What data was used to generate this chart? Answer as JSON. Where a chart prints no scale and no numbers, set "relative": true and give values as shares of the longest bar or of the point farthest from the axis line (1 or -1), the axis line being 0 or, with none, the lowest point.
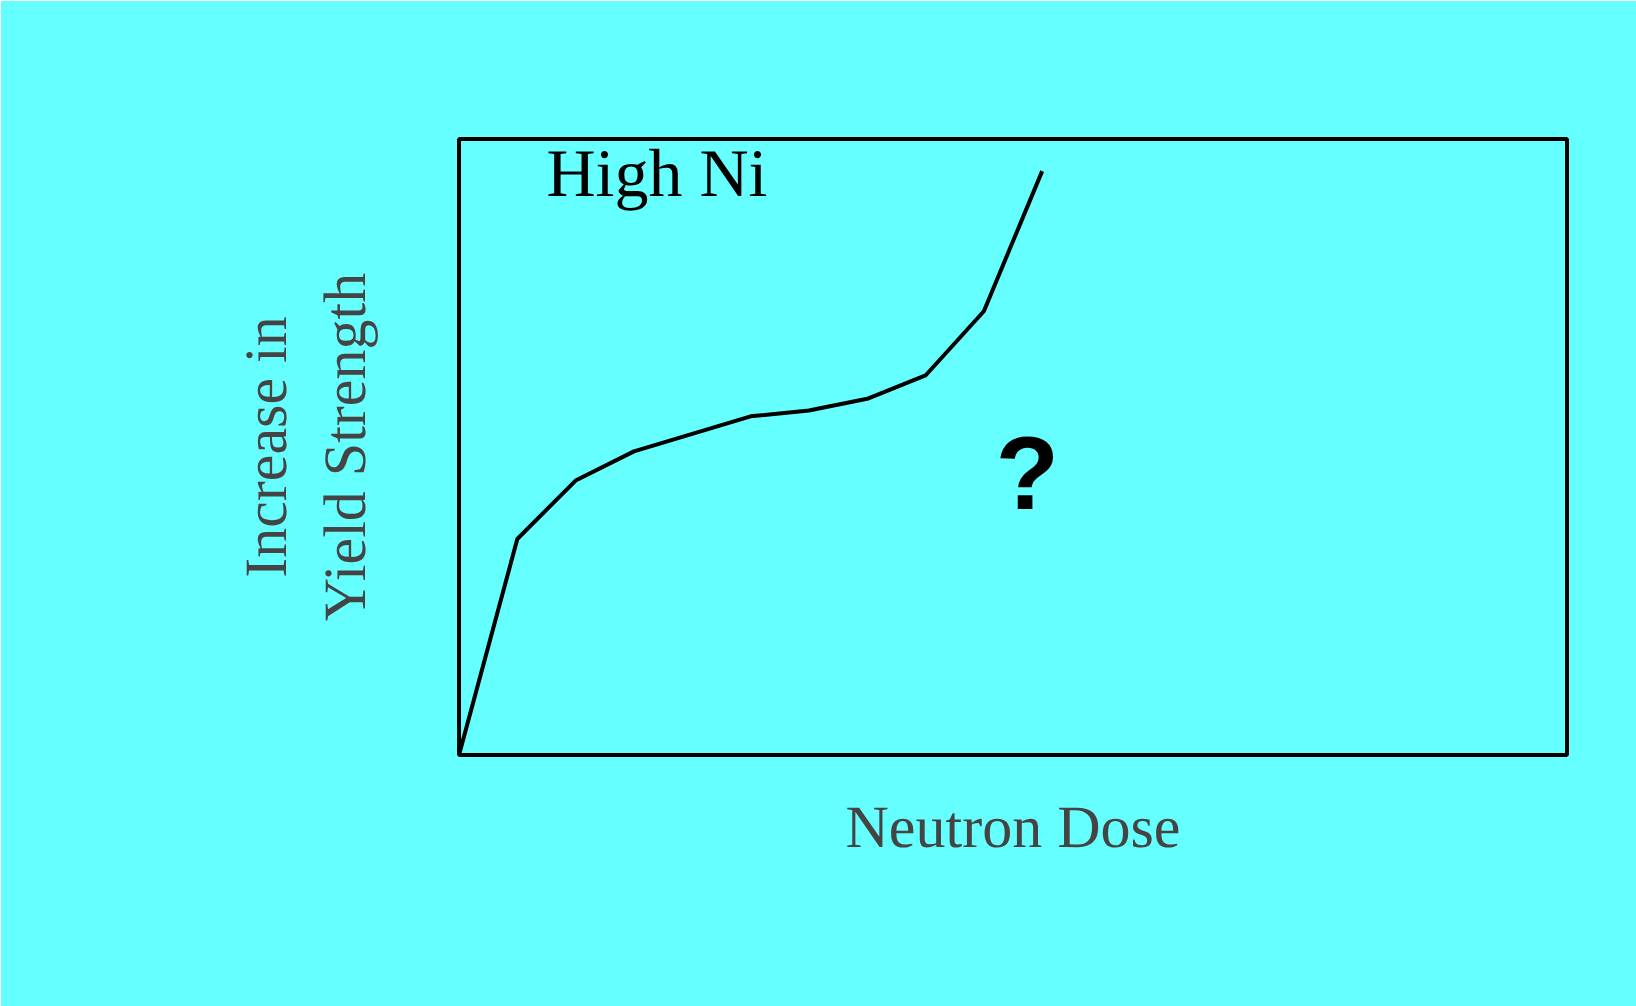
{
  "chart_data": {
    "type": "line",
    "relative": true,
    "xlabel": "Neutron Dose",
    "ylabel": "Increase in\nYield Strength",
    "annotations": [
      "?"
    ],
    "categories": [
      null,
      null,
      null,
      null,
      null,
      null,
      null,
      null,
      null,
      null,
      null,
      null,
      null,
      null,
      null,
      null,
      null,
      null,
      null,
      null
    ],
    "series": [
      {
        "name": "High Ni",
        "color": "#000000",
        "values": [
          0,
          0.37,
          0.47,
          0.52,
          0.55,
          0.58,
          0.59,
          0.61,
          0.65,
          0.76,
          1.0,
          null,
          null,
          null,
          null,
          null,
          null,
          null,
          null,
          null
        ]
      }
    ]
  }
}
